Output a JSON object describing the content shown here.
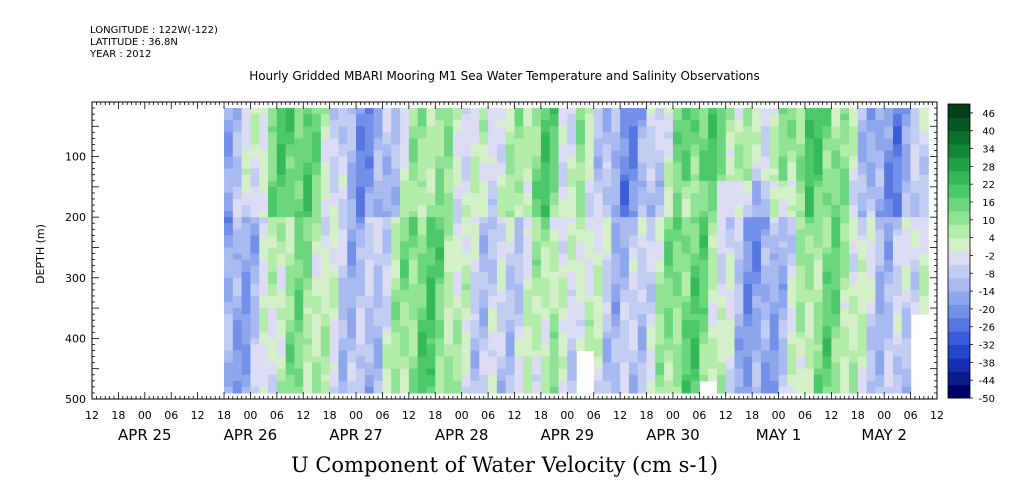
{
  "meta": {
    "longitude": "LONGITUDE : 122W(-122)",
    "latitude": "LATITUDE : 36.8N",
    "year": "YEAR : 2012"
  },
  "chart_data": {
    "type": "heatmap",
    "title": "Hourly Gridded MBARI Mooring M1 Sea Water Temperature and Salinity Observations",
    "xlabel": "U Component of Water Velocity (cm s-1)",
    "ylabel": "DEPTH (m)",
    "x_axis": {
      "range_hours_from_apr25_00": [
        -12,
        180
      ],
      "hour_tick_labels": [
        "12",
        "18",
        "00",
        "06",
        "12",
        "18",
        "00",
        "06",
        "12",
        "18",
        "00",
        "06",
        "12",
        "18",
        "00",
        "06",
        "12",
        "18",
        "00",
        "06",
        "12",
        "18",
        "00",
        "06",
        "12",
        "18",
        "00",
        "06",
        "12",
        "18",
        "00",
        "06",
        "12"
      ],
      "day_labels": [
        "APR 25",
        "APR 26",
        "APR 27",
        "APR 28",
        "APR 29",
        "APR 30",
        "MAY  1",
        "MAY  2"
      ]
    },
    "y_axis": {
      "range": [
        500,
        10
      ],
      "inverted": true,
      "tick_values": [
        100,
        200,
        300,
        400,
        500
      ],
      "tick_labels": [
        "100",
        "200",
        "300",
        "400",
        "500"
      ]
    },
    "colorbar": {
      "labels": [
        "46",
        "40",
        "34",
        "28",
        "22",
        "16",
        "10",
        "4",
        "-2",
        "-8",
        "-14",
        "-20",
        "-26",
        "-32",
        "-38",
        "-44",
        "-50"
      ],
      "min": -50,
      "max": 49,
      "colors": [
        "#000066",
        "#0a1a8c",
        "#1430b0",
        "#2246cc",
        "#3a5cd8",
        "#5676e0",
        "#7290e8",
        "#8ea6ec",
        "#a8baf0",
        "#c2cdf2",
        "#dcdcf4",
        "#d4f0c8",
        "#b4ecaa",
        "#90e294",
        "#6cd67e",
        "#4cc86a",
        "#34b858",
        "#22a048",
        "#14883a",
        "#0a702e",
        "#045824",
        "#023f1a"
      ]
    },
    "field_description": "Alternating positive (green) and negative (blue) U velocity bands; data between 20 m and 485 m depth from Apr 25 18:00 to May 2 06:00"
  }
}
